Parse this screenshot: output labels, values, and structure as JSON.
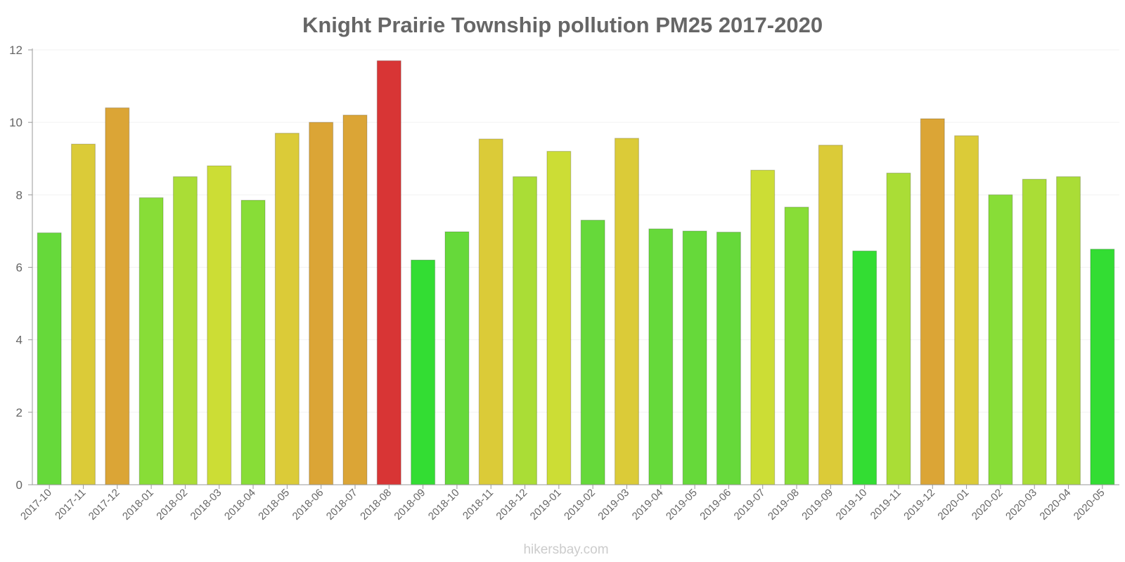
{
  "chart_data": {
    "type": "bar",
    "title": "Knight Prairie Township pollution PM25 2017-2020",
    "xlabel": "",
    "ylabel": "",
    "ylim": [
      0,
      12
    ],
    "yticks": [
      0,
      2,
      4,
      6,
      8,
      10,
      12
    ],
    "grid": true,
    "categories": [
      "2017-10",
      "2017-11",
      "2017-12",
      "2018-01",
      "2018-02",
      "2018-03",
      "2018-04",
      "2018-05",
      "2018-06",
      "2018-07",
      "2018-08",
      "2018-09",
      "2018-10",
      "2018-11",
      "2018-12",
      "2019-01",
      "2019-02",
      "2019-03",
      "2019-04",
      "2019-05",
      "2019-06",
      "2019-07",
      "2019-08",
      "2019-09",
      "2019-10",
      "2019-11",
      "2019-12",
      "2020-01",
      "2020-02",
      "2020-03",
      "2020-04",
      "2020-05"
    ],
    "values": [
      6.95,
      9.4,
      10.4,
      7.92,
      8.5,
      8.8,
      7.85,
      9.7,
      10.0,
      10.2,
      11.7,
      6.2,
      6.98,
      9.54,
      8.5,
      9.2,
      7.3,
      9.56,
      7.06,
      7.0,
      6.97,
      8.68,
      7.66,
      9.37,
      6.45,
      8.6,
      10.1,
      9.63,
      8.0,
      8.43,
      8.5,
      6.5
    ],
    "colors": [
      "#66d93a",
      "#dbcb38",
      "#dba536",
      "#88dd37",
      "#aadd36",
      "#ccdd35",
      "#88dd37",
      "#dbcb38",
      "#dba536",
      "#dba536",
      "#d83535",
      "#33dd33",
      "#66d93a",
      "#dbcb38",
      "#aadd36",
      "#ccdd35",
      "#66d93a",
      "#dbcb38",
      "#66d93a",
      "#66d93a",
      "#66d93a",
      "#ccdd35",
      "#88dd37",
      "#dbcb38",
      "#33dd33",
      "#aadd36",
      "#dba536",
      "#dbcb38",
      "#88dd37",
      "#aadd36",
      "#aadd36",
      "#33dd33"
    ]
  },
  "watermark": "hikersbay.com"
}
